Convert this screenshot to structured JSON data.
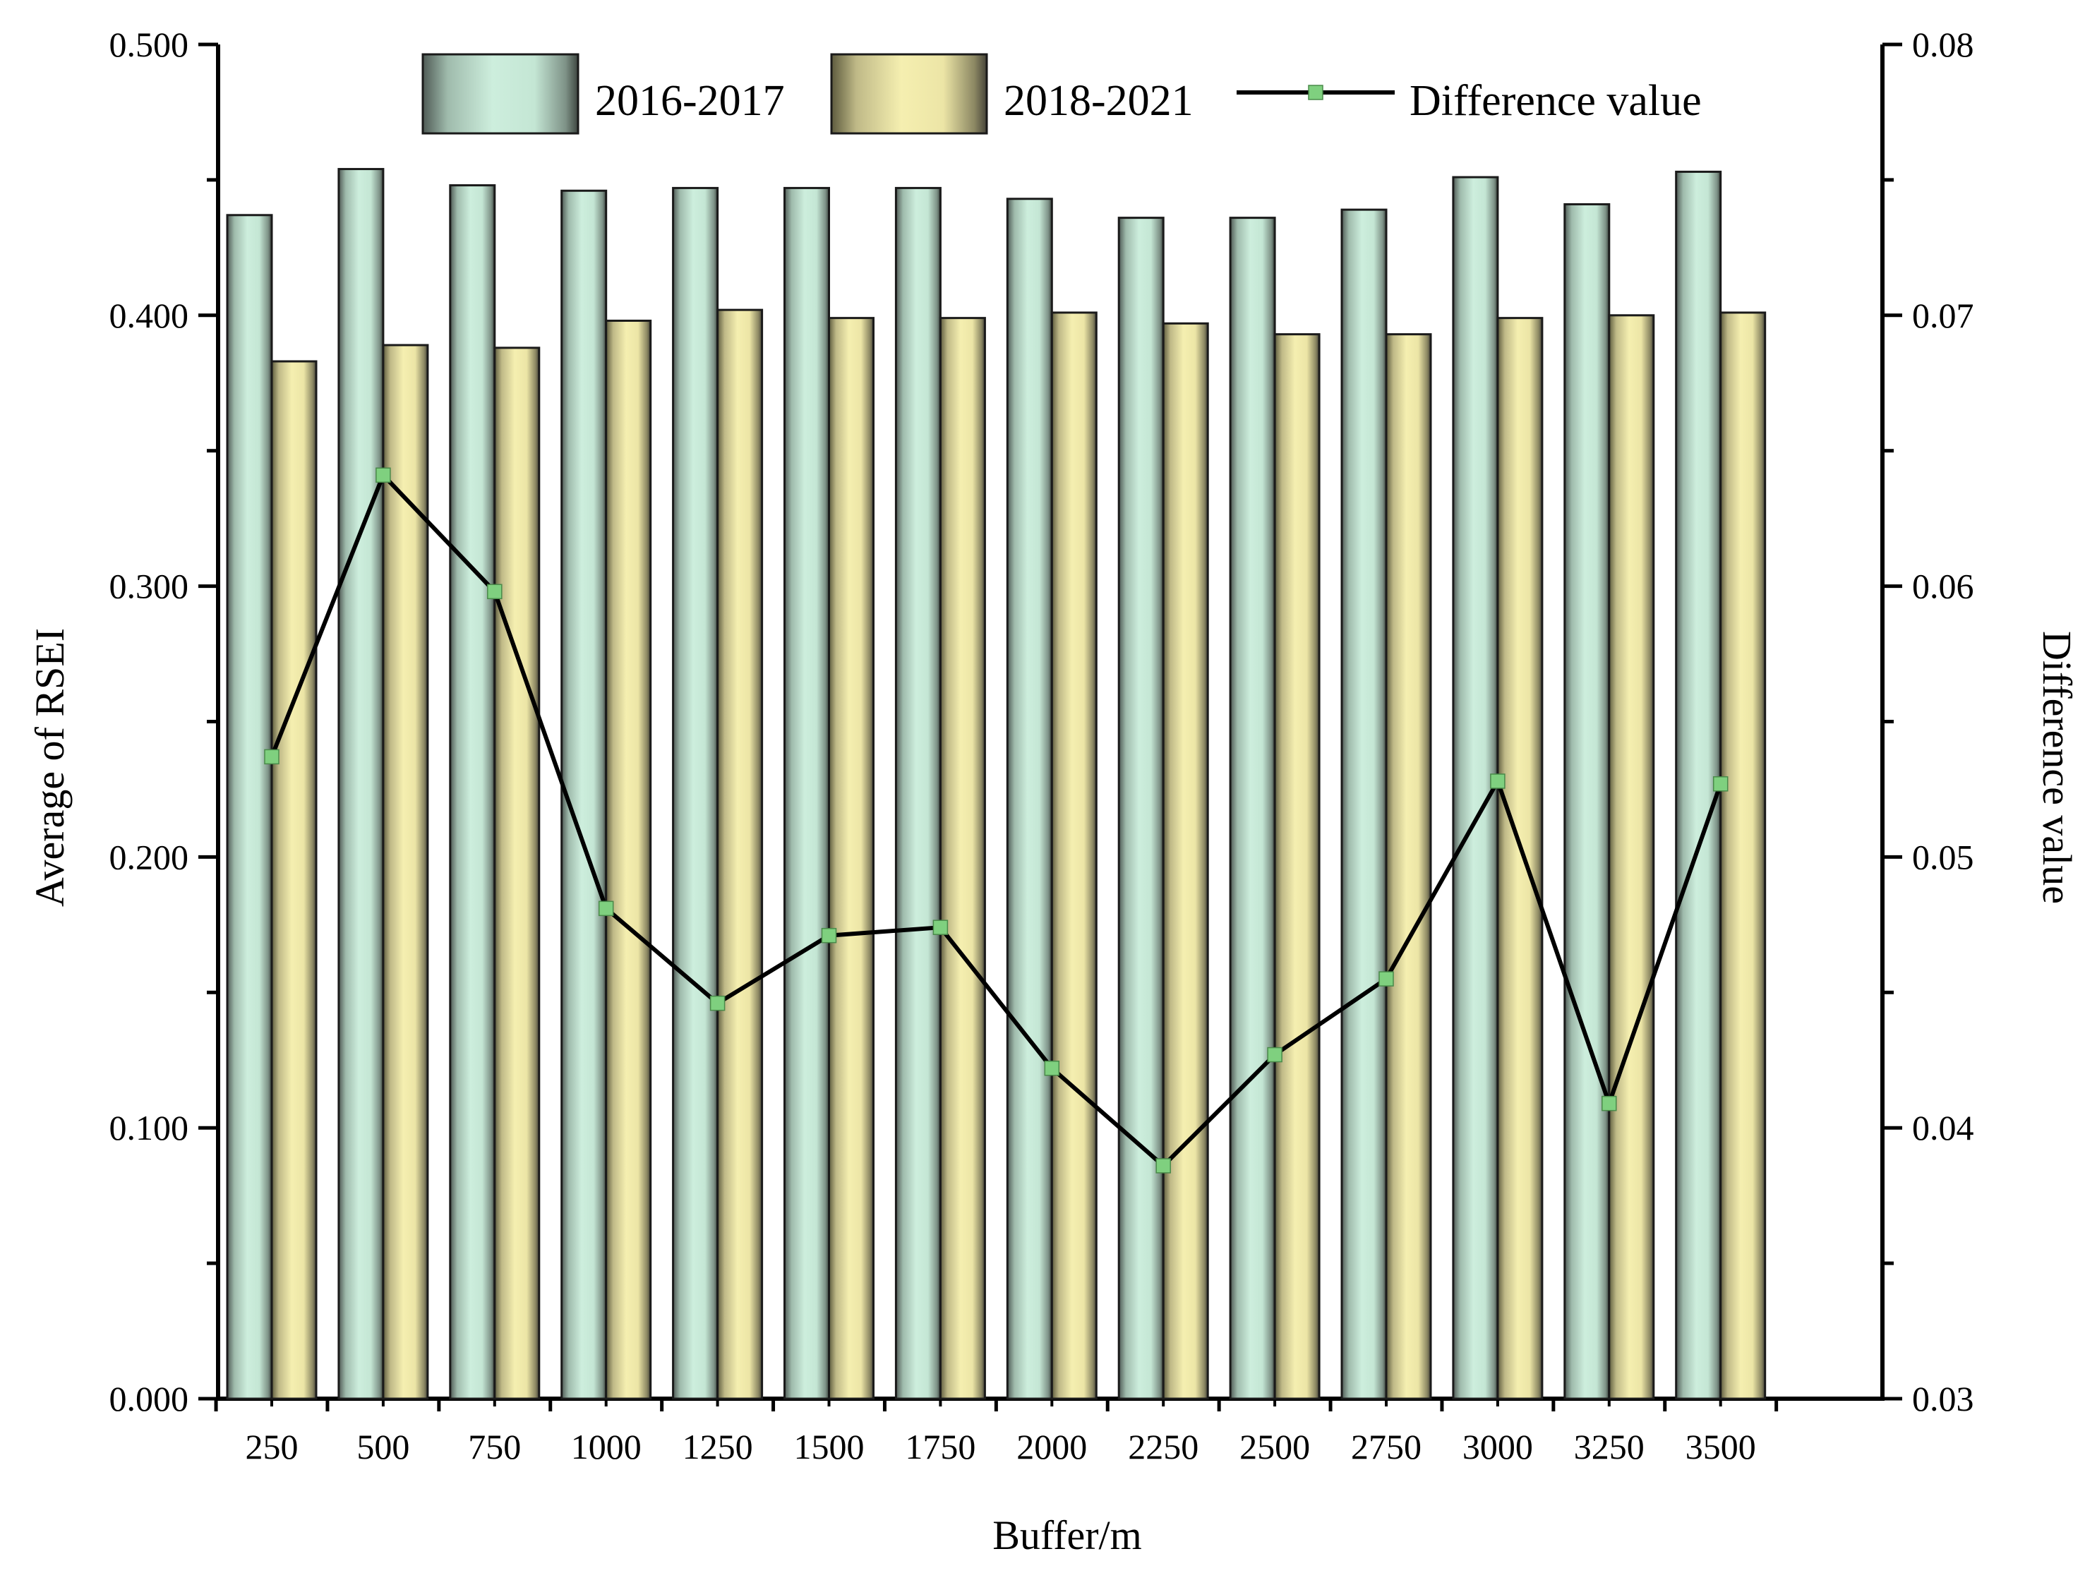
{
  "chart_data": {
    "type": "bar",
    "xlabel": "Buffer/m",
    "ylabel": "Average of RSEI",
    "y2label": "Difference value",
    "categories": [
      "250",
      "500",
      "750",
      "1000",
      "1250",
      "1500",
      "1750",
      "2000",
      "2250",
      "2500",
      "2750",
      "3000",
      "3250",
      "3500"
    ],
    "ylim": [
      0,
      0.5
    ],
    "y2lim": [
      0.03,
      0.08
    ],
    "yticks": [
      "0.000",
      "0.100",
      "0.200",
      "0.300",
      "0.400",
      "0.500"
    ],
    "y2ticks": [
      "0.03",
      "0.04",
      "0.05",
      "0.06",
      "0.07",
      "0.08"
    ],
    "grid": false,
    "legend_position": "top",
    "series": [
      {
        "name": "2016-2017",
        "type": "bar",
        "axis": "left",
        "color": "#cdeedd",
        "values": [
          0.437,
          0.454,
          0.448,
          0.446,
          0.447,
          0.447,
          0.447,
          0.443,
          0.436,
          0.436,
          0.439,
          0.451,
          0.441,
          0.453
        ]
      },
      {
        "name": "2018-2021",
        "type": "bar",
        "axis": "left",
        "color": "#f5efb0",
        "values": [
          0.383,
          0.389,
          0.388,
          0.398,
          0.402,
          0.399,
          0.399,
          0.401,
          0.397,
          0.393,
          0.393,
          0.399,
          0.4,
          0.401
        ]
      },
      {
        "name": "Difference value",
        "type": "line",
        "axis": "right",
        "color": "#000000",
        "marker_color": "#7fd07f",
        "values": [
          0.0537,
          0.0641,
          0.0598,
          0.0481,
          0.0446,
          0.0471,
          0.0474,
          0.0422,
          0.0386,
          0.0427,
          0.0455,
          0.0528,
          0.0409,
          0.0527
        ]
      }
    ]
  }
}
